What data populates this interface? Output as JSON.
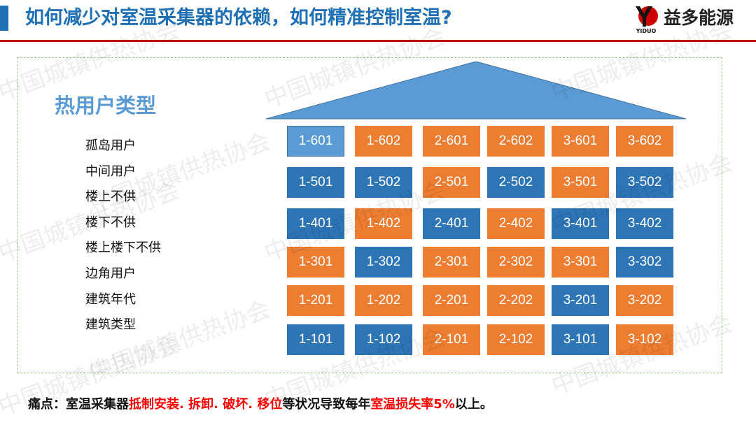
{
  "header": {
    "title": "如何减少对室温采集器的依赖，如何精准控制室温?",
    "brand": "益多能源",
    "logo_text": "YIDUO",
    "accent": "#1f6fb5",
    "rule_color": "#c00000"
  },
  "section": {
    "title": "热用户类型"
  },
  "user_types": [
    "孤岛用户",
    "中间用户",
    "楼上不供",
    "楼下不供",
    "楼上楼下不供",
    "边角用户",
    "建筑年代",
    "建筑类型"
  ],
  "colors": {
    "orange": "#ed7d31",
    "blue": "#2e75b6",
    "light_blue": "#5b9bd5"
  },
  "grid": [
    [
      {
        "id": "1-601",
        "c": "L"
      },
      {
        "id": "1-602",
        "c": "O"
      },
      {
        "id": "2-601",
        "c": "O"
      },
      {
        "id": "2-602",
        "c": "O"
      },
      {
        "id": "3-601",
        "c": "O"
      },
      {
        "id": "3-602",
        "c": "O"
      }
    ],
    [
      {
        "id": "1-501",
        "c": "B"
      },
      {
        "id": "1-502",
        "c": "B"
      },
      {
        "id": "2-501",
        "c": "O"
      },
      {
        "id": "2-502",
        "c": "B"
      },
      {
        "id": "3-501",
        "c": "O"
      },
      {
        "id": "3-502",
        "c": "B"
      }
    ],
    [
      {
        "id": "1-401",
        "c": "B"
      },
      {
        "id": "1-402",
        "c": "O"
      },
      {
        "id": "2-401",
        "c": "B"
      },
      {
        "id": "2-402",
        "c": "O"
      },
      {
        "id": "3-401",
        "c": "B"
      },
      {
        "id": "3-402",
        "c": "B"
      }
    ],
    [
      {
        "id": "1-301",
        "c": "O"
      },
      {
        "id": "1-302",
        "c": "B"
      },
      {
        "id": "2-301",
        "c": "O"
      },
      {
        "id": "2-302",
        "c": "O"
      },
      {
        "id": "3-301",
        "c": "O"
      },
      {
        "id": "3-302",
        "c": "B"
      }
    ],
    [
      {
        "id": "1-201",
        "c": "O"
      },
      {
        "id": "1-202",
        "c": "O"
      },
      {
        "id": "2-201",
        "c": "O"
      },
      {
        "id": "2-202",
        "c": "O"
      },
      {
        "id": "3-201",
        "c": "B"
      },
      {
        "id": "3-202",
        "c": "O"
      }
    ],
    [
      {
        "id": "1-101",
        "c": "B"
      },
      {
        "id": "1-102",
        "c": "B"
      },
      {
        "id": "2-101",
        "c": "O"
      },
      {
        "id": "2-102",
        "c": "O"
      },
      {
        "id": "3-101",
        "c": "B"
      },
      {
        "id": "3-102",
        "c": "O"
      }
    ]
  ],
  "footer": {
    "p1": "痛点：室温采集器",
    "p2": "抵制安装. 拆卸. 破坏. 移位",
    "p3": "等状况导致每年",
    "p4": "室温损失率5%",
    "p5": "以上。"
  },
  "watermark": "中国城镇供热协会"
}
